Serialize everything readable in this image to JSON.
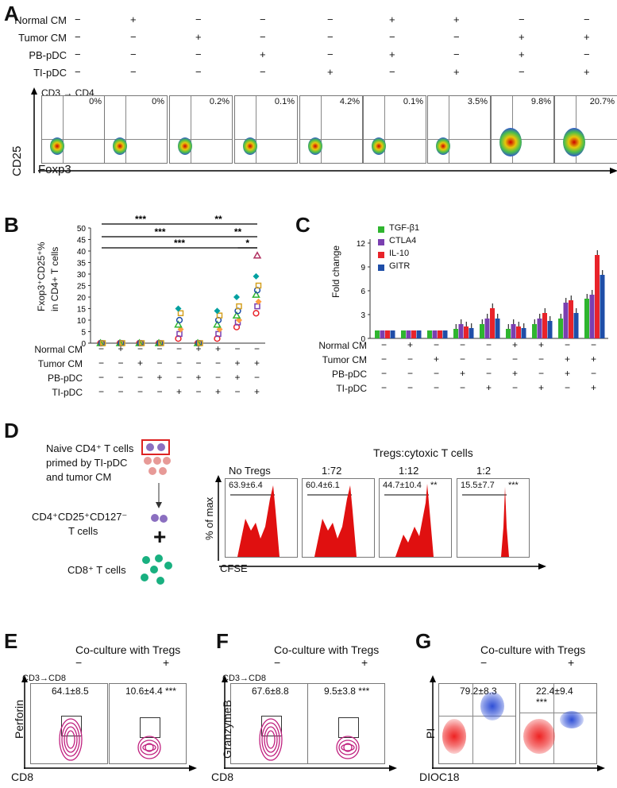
{
  "figure": {
    "panels": {
      "A": "A",
      "B": "B",
      "C": "C",
      "D": "D",
      "E": "E",
      "F": "F",
      "G": "G"
    }
  },
  "panelA": {
    "row_labels": [
      "Normal CM",
      "Tumor CM",
      "PB-pDC",
      "TI-pDC"
    ],
    "conditions": [
      [
        "−",
        "−",
        "−",
        "−"
      ],
      [
        "+",
        "−",
        "−",
        "−"
      ],
      [
        "−",
        "+",
        "−",
        "−"
      ],
      [
        "−",
        "−",
        "+",
        "−"
      ],
      [
        "−",
        "−",
        "−",
        "+"
      ],
      [
        "+",
        "−",
        "+",
        "−"
      ],
      [
        "+",
        "−",
        "−",
        "+"
      ],
      [
        "−",
        "+",
        "+",
        "−"
      ],
      [
        "−",
        "+",
        "−",
        "+"
      ]
    ],
    "gating": "CD3 → CD4",
    "y_axis": "CD25",
    "x_axis": "Foxp3",
    "percentages": [
      "0%",
      "0%",
      "0.2%",
      "0.1%",
      "4.2%",
      "0.1%",
      "3.5%",
      "9.8%",
      "20.7%"
    ]
  },
  "panelB": {
    "ylabel": "Fxop3⁺CD25⁺% in CD4+ T cells",
    "ylabel_l1": "Fxop3⁺CD25⁺%",
    "ylabel_l2": "in CD4+ T cells",
    "yticks": [
      "0",
      "5",
      "10",
      "15",
      "20",
      "25",
      "30",
      "35",
      "40",
      "45",
      "50"
    ],
    "row_labels": [
      "Normal CM",
      "Tumor CM",
      "PB-pDC",
      "TI-pDC"
    ],
    "conditions": [
      [
        "−",
        "−",
        "−",
        "−"
      ],
      [
        "+",
        "−",
        "−",
        "−"
      ],
      [
        "−",
        "+",
        "−",
        "−"
      ],
      [
        "−",
        "−",
        "+",
        "−"
      ],
      [
        "−",
        "−",
        "−",
        "+"
      ],
      [
        "+",
        "−",
        "+",
        "−"
      ],
      [
        "+",
        "−",
        "−",
        "+"
      ],
      [
        "−",
        "+",
        "+",
        "−"
      ],
      [
        "−",
        "+",
        "−",
        "+"
      ]
    ],
    "sig": [
      "***",
      "**",
      "***",
      "**",
      "***",
      "*"
    ]
  },
  "panelC": {
    "ylabel": "Fold change",
    "yticks": [
      "0",
      "3",
      "6",
      "9",
      "12"
    ],
    "legend": [
      "TGF-β1",
      "CTLA4",
      "IL-10",
      "GITR"
    ],
    "row_labels": [
      "Normal CM",
      "Tumor CM",
      "PB-pDC",
      "TI-pDC"
    ]
  },
  "panelD": {
    "line1": "Naive CD4⁺ T cells",
    "line2": "primed by TI-pDC",
    "line3": "and tumor CM",
    "treg_label": "CD4⁺CD25⁺CD127⁻",
    "treg_label2": "T cells",
    "plus": "+",
    "cd8_label": "CD8⁺ T cells",
    "title": "Tregs:cytoxic T cells",
    "y_axis": "% of max",
    "x_axis": "CFSE",
    "histos": [
      {
        "head": "No Tregs",
        "value": "63.9±6.4",
        "sig": ""
      },
      {
        "head": "1:72",
        "value": "60.4±6.1",
        "sig": ""
      },
      {
        "head": "1:12",
        "value": "44.7±10.4",
        "sig": "**"
      },
      {
        "head": "1:2",
        "value": "15.5±7.7",
        "sig": "***"
      }
    ]
  },
  "panelE": {
    "title": "Co-culture with Tregs",
    "minus": "−",
    "plus": "+",
    "gating": "CD3→CD8",
    "y_axis": "Perforin",
    "x_axis": "CD8",
    "values": [
      "64.1±8.5",
      "10.6±4.4 ***"
    ]
  },
  "panelF": {
    "title": "Co-culture with Tregs",
    "minus": "−",
    "plus": "+",
    "gating": "CD3→CD8",
    "y_axis": "GranzymeB",
    "x_axis": "CD8",
    "values": [
      "67.6±8.8",
      "9.5±3.8 ***"
    ]
  },
  "panelG": {
    "title": "Co-culture with Tregs",
    "minus": "−",
    "plus": "+",
    "y_axis": "PI",
    "x_axis": "DIOC18",
    "values": [
      "79.2±8.3",
      "22.4±9.4"
    ],
    "sig2": "***"
  },
  "chart_data": [
    {
      "type": "scatter",
      "title": "",
      "ylabel": "Fxop3+CD25+% in CD4+ T cells",
      "ylim": [
        0,
        50
      ],
      "categories": [
        "1",
        "2",
        "3",
        "4",
        "5",
        "6",
        "7",
        "8",
        "9"
      ],
      "groups": [
        [
          0,
          0,
          0,
          0,
          0,
          0
        ],
        [
          0,
          0,
          0,
          0,
          0,
          0
        ],
        [
          0,
          0,
          0,
          0,
          0,
          0
        ],
        [
          0,
          0,
          0,
          0,
          0,
          0
        ],
        [
          2,
          4,
          6,
          8,
          10,
          13,
          15
        ],
        [
          0,
          0,
          0,
          0,
          0,
          0
        ],
        [
          2,
          4,
          6,
          8,
          10,
          12,
          14
        ],
        [
          7,
          9,
          10,
          12,
          14,
          16,
          20
        ],
        [
          13,
          16,
          18,
          21,
          23,
          25,
          29,
          38
        ]
      ]
    },
    {
      "type": "bar",
      "title": "",
      "ylabel": "Fold change",
      "ylim": [
        0,
        12
      ],
      "categories": [
        "1",
        "2",
        "3",
        "4",
        "5",
        "6",
        "7",
        "8",
        "9"
      ],
      "series": [
        {
          "name": "TGF-β1",
          "color": "#2fb52f",
          "values": [
            1,
            1,
            1,
            1.2,
            1.8,
            1.2,
            1.8,
            2.5,
            5
          ]
        },
        {
          "name": "CTLA4",
          "color": "#7a3fb0",
          "values": [
            1,
            1,
            1,
            1.8,
            2.5,
            1.8,
            2.5,
            4.5,
            5.5
          ]
        },
        {
          "name": "IL-10",
          "color": "#e8232a",
          "values": [
            1,
            1,
            1,
            1.5,
            3.8,
            1.5,
            3.2,
            4.8,
            10.5
          ]
        },
        {
          "name": "GITR",
          "color": "#1f4ea8",
          "values": [
            1,
            1,
            1,
            1.3,
            2.5,
            1.3,
            2.2,
            3.2,
            8
          ]
        }
      ]
    }
  ]
}
